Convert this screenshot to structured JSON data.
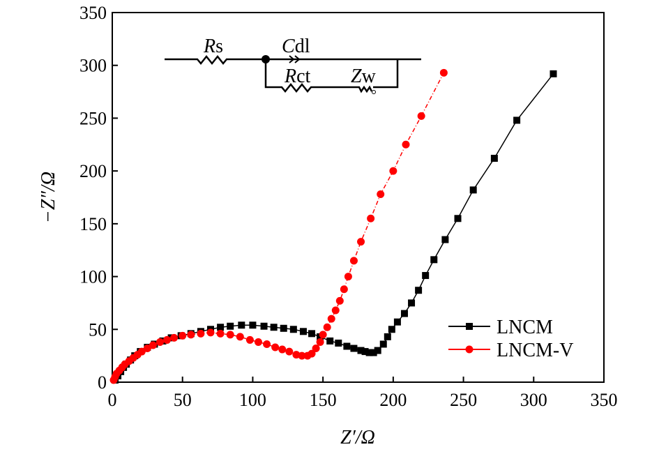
{
  "chart_data": {
    "type": "scatter",
    "title": "",
    "xlabel": "Z′/Ω",
    "ylabel": "−Z″/Ω",
    "xlim": [
      0,
      350
    ],
    "ylim": [
      0,
      350
    ],
    "xticks": [
      0,
      50,
      100,
      150,
      200,
      250,
      300,
      350
    ],
    "yticks": [
      0,
      50,
      100,
      150,
      200,
      250,
      300,
      350
    ],
    "grid": false,
    "legend_position": "right",
    "series": [
      {
        "name": "LNCM",
        "color": "#000000",
        "marker": "square",
        "points": [
          [
            2,
            2
          ],
          [
            4,
            6
          ],
          [
            6,
            10
          ],
          [
            8,
            14
          ],
          [
            10,
            17
          ],
          [
            13,
            21
          ],
          [
            16,
            25
          ],
          [
            20,
            29
          ],
          [
            25,
            33
          ],
          [
            30,
            36
          ],
          [
            36,
            39
          ],
          [
            42,
            42
          ],
          [
            49,
            44
          ],
          [
            56,
            46
          ],
          [
            63,
            48
          ],
          [
            70,
            50
          ],
          [
            77,
            52
          ],
          [
            84,
            53
          ],
          [
            92,
            54
          ],
          [
            100,
            54
          ],
          [
            108,
            53
          ],
          [
            115,
            52
          ],
          [
            122,
            51
          ],
          [
            129,
            50
          ],
          [
            136,
            48
          ],
          [
            142,
            46
          ],
          [
            148,
            43
          ],
          [
            155,
            39
          ],
          [
            161,
            37
          ],
          [
            167,
            34
          ],
          [
            172,
            32
          ],
          [
            177,
            30
          ],
          [
            180,
            29
          ],
          [
            183,
            28
          ],
          [
            186,
            28
          ],
          [
            189,
            30
          ],
          [
            193,
            36
          ],
          [
            196,
            43
          ],
          [
            199,
            50
          ],
          [
            203,
            57
          ],
          [
            208,
            65
          ],
          [
            213,
            75
          ],
          [
            218,
            87
          ],
          [
            223,
            101
          ],
          [
            229,
            116
          ],
          [
            237,
            135
          ],
          [
            246,
            155
          ],
          [
            257,
            182
          ],
          [
            272,
            212
          ],
          [
            288,
            248
          ],
          [
            314,
            292
          ]
        ]
      },
      {
        "name": "LNCM-V",
        "color": "#ff0000",
        "marker": "circle",
        "points": [
          [
            1,
            2
          ],
          [
            2,
            5
          ],
          [
            3,
            8
          ],
          [
            5,
            11
          ],
          [
            7,
            14
          ],
          [
            9,
            17
          ],
          [
            12,
            20
          ],
          [
            15,
            23
          ],
          [
            18,
            26
          ],
          [
            21,
            29
          ],
          [
            25,
            32
          ],
          [
            29,
            35
          ],
          [
            34,
            38
          ],
          [
            39,
            40
          ],
          [
            44,
            42
          ],
          [
            50,
            44
          ],
          [
            56,
            45
          ],
          [
            63,
            46
          ],
          [
            70,
            47
          ],
          [
            77,
            46
          ],
          [
            84,
            45
          ],
          [
            91,
            43
          ],
          [
            98,
            40
          ],
          [
            104,
            38
          ],
          [
            110,
            36
          ],
          [
            116,
            33
          ],
          [
            121,
            31
          ],
          [
            126,
            29
          ],
          [
            131,
            26
          ],
          [
            135,
            25
          ],
          [
            139,
            25
          ],
          [
            142,
            27
          ],
          [
            145,
            32
          ],
          [
            148,
            38
          ],
          [
            150,
            45
          ],
          [
            153,
            52
          ],
          [
            156,
            60
          ],
          [
            159,
            68
          ],
          [
            162,
            77
          ],
          [
            165,
            88
          ],
          [
            168,
            100
          ],
          [
            172,
            115
          ],
          [
            177,
            133
          ],
          [
            184,
            155
          ],
          [
            191,
            178
          ],
          [
            200,
            200
          ],
          [
            209,
            225
          ],
          [
            220,
            252
          ],
          [
            236,
            293
          ]
        ]
      }
    ],
    "inset_circuit": {
      "labels": [
        {
          "italic": "R",
          "rest": "s"
        },
        {
          "italic": "C",
          "rest": "dl"
        },
        {
          "italic": "R",
          "rest": "ct"
        },
        {
          "italic": "Z",
          "rest": "w"
        }
      ]
    }
  }
}
